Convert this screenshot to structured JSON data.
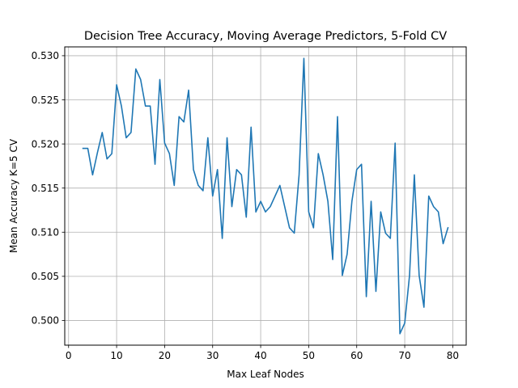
{
  "chart_data": {
    "type": "line",
    "title": "Decision Tree Accuracy, Moving Average Predictors, 5-Fold CV",
    "xlabel": "Max Leaf Nodes",
    "ylabel": "Mean Accuracy K=5 CV",
    "xlim": [
      -0.8,
      82.8
    ],
    "ylim": [
      0.4972,
      0.531
    ],
    "xticks": [
      0,
      10,
      20,
      30,
      40,
      50,
      60,
      70,
      80
    ],
    "xtick_labels": [
      "0",
      "10",
      "20",
      "30",
      "40",
      "50",
      "60",
      "70",
      "80"
    ],
    "yticks": [
      0.5,
      0.505,
      0.51,
      0.515,
      0.52,
      0.525,
      0.53
    ],
    "ytick_labels": [
      "0.500",
      "0.505",
      "0.510",
      "0.515",
      "0.520",
      "0.525",
      "0.530"
    ],
    "grid": true,
    "line_color": "#1f77b4",
    "series": [
      {
        "x": [
          3,
          4,
          5,
          6,
          7,
          8,
          9,
          10,
          11,
          12,
          13,
          14,
          15,
          16,
          17,
          18,
          19,
          20,
          21,
          22,
          23,
          24,
          25,
          26,
          27,
          28,
          29,
          30,
          31,
          32,
          33,
          34,
          35,
          36,
          37,
          38,
          39,
          40,
          41,
          42,
          43,
          44,
          45,
          46,
          47,
          48,
          49,
          50,
          51,
          52,
          53,
          54,
          55,
          56,
          57,
          58,
          59,
          60,
          61,
          62,
          63,
          64,
          65,
          66,
          67,
          68,
          69,
          70,
          71,
          72,
          73,
          74,
          75,
          76,
          77,
          78,
          79
        ],
        "values": [
          0.5195,
          0.5195,
          0.5165,
          0.519,
          0.5213,
          0.5183,
          0.5189,
          0.5267,
          0.5243,
          0.5207,
          0.5213,
          0.5285,
          0.5273,
          0.5243,
          0.5243,
          0.5177,
          0.5273,
          0.5201,
          0.5189,
          0.5153,
          0.5231,
          0.5225,
          0.5261,
          0.5171,
          0.5153,
          0.5147,
          0.5207,
          0.5141,
          0.5171,
          0.5093,
          0.5207,
          0.5129,
          0.5171,
          0.5165,
          0.5117,
          0.5219,
          0.5123,
          0.5135,
          0.5123,
          0.5129,
          0.5141,
          0.5153,
          0.5129,
          0.5105,
          0.5099,
          0.5165,
          0.5297,
          0.5123,
          0.5105,
          0.5189,
          0.5165,
          0.5135,
          0.5069,
          0.5231,
          0.5051,
          0.5075,
          0.5135,
          0.5171,
          0.5177,
          0.5027,
          0.5135,
          0.5033,
          0.5123,
          0.5099,
          0.5093,
          0.5201,
          0.4985,
          0.4997,
          0.5051,
          0.5165,
          0.5051,
          0.5015,
          0.5141,
          0.5129,
          0.5123,
          0.5087,
          0.5105
        ]
      }
    ]
  }
}
